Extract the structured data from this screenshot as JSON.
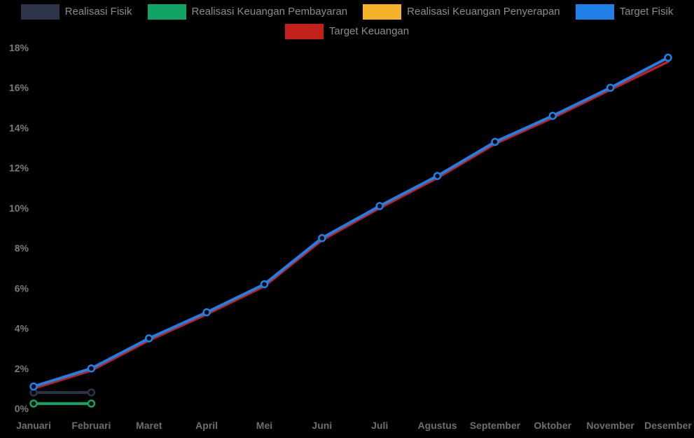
{
  "legend": {
    "items": [
      {
        "label": "Realisasi Fisik",
        "color": "#2d3448"
      },
      {
        "label": "Realisasi Keuangan Pembayaran",
        "color": "#12a465"
      },
      {
        "label": "Realisasi Keuangan Penyerapan",
        "color": "#f3b229"
      },
      {
        "label": "Target Fisik",
        "color": "#2080e8"
      },
      {
        "label": "Target Keuangan",
        "color": "#c2201a"
      }
    ]
  },
  "chart_data": {
    "type": "line",
    "title": "",
    "xlabel": "",
    "ylabel": "",
    "categories": [
      "Januari",
      "Februari",
      "Maret",
      "April",
      "Mei",
      "Juni",
      "Juli",
      "Agustus",
      "September",
      "Oktober",
      "November",
      "Desember"
    ],
    "ytick_labels": [
      "0%",
      "2%",
      "4%",
      "6%",
      "8%",
      "10%",
      "12%",
      "14%",
      "16%",
      "18%"
    ],
    "ylim": [
      0,
      18
    ],
    "grid": false,
    "legend_position": "top-center",
    "background": "#000000",
    "axis_label_color": "#7a7a7a",
    "series": [
      {
        "name": "Realisasi Fisik",
        "color": "#2d3448",
        "values": [
          0.8,
          0.8
        ],
        "markers": "endpoints",
        "z": 1
      },
      {
        "name": "Realisasi Keuangan Pembayaran",
        "color": "#12a465",
        "values": [
          0.25,
          0.25
        ],
        "markers": "endpoints",
        "z": 2
      },
      {
        "name": "Realisasi Keuangan Penyerapan",
        "color": "#f3b229",
        "values": [],
        "markers": "none",
        "z": 0
      },
      {
        "name": "Target Fisik",
        "color": "#2080e8",
        "values": [
          1.1,
          2.0,
          3.5,
          4.8,
          6.2,
          8.5,
          10.1,
          11.6,
          13.3,
          14.6,
          16.0,
          17.5
        ],
        "markers": "all",
        "z": 4
      },
      {
        "name": "Target Keuangan",
        "color": "#c2201a",
        "values": [
          1.0,
          1.9,
          3.4,
          4.7,
          6.1,
          8.4,
          10.0,
          11.5,
          13.2,
          14.5,
          15.9,
          17.3
        ],
        "markers": "none",
        "z": 3
      }
    ]
  }
}
